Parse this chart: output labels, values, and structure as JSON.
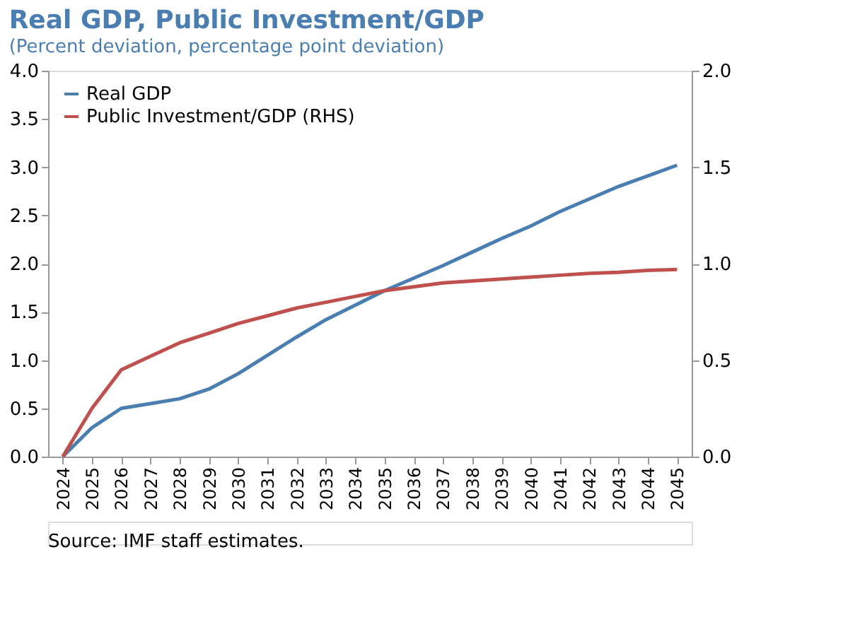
{
  "chart_data": {
    "type": "line",
    "title": "Real GDP, Public Investment/GDP",
    "subtitle": "(Percent deviation, percentage point deviation)",
    "categories": [
      "2024",
      "2025",
      "2026",
      "2027",
      "2028",
      "2029",
      "2030",
      "2031",
      "2032",
      "2033",
      "2034",
      "2035",
      "2036",
      "2037",
      "2038",
      "2039",
      "2040",
      "2041",
      "2042",
      "2043",
      "2044",
      "2045"
    ],
    "series": [
      {
        "name": "Real GDP",
        "color": "#4a7eb0",
        "values": [
          0,
          0.3,
          0.5,
          0.55,
          0.6,
          0.7,
          0.86,
          1.05,
          1.24,
          1.42,
          1.57,
          1.72,
          1.85,
          1.98,
          2.12,
          2.26,
          2.39,
          2.54,
          2.67,
          2.8,
          2.91,
          3.02
        ]
      },
      {
        "name": "Public Investment/GDP (RHS)",
        "color": "#c0504d",
        "axis": "y2",
        "values": [
          0,
          0.25,
          0.45,
          0.52,
          0.59,
          0.64,
          0.69,
          0.73,
          0.77,
          0.8,
          0.83,
          0.86,
          0.88,
          0.9,
          0.91,
          0.92,
          0.93,
          0.94,
          0.95,
          0.955,
          0.965,
          0.97
        ]
      }
    ],
    "ylim": [
      0,
      4
    ],
    "yticks": [
      {
        "value": 0,
        "label": "0.0"
      },
      0.5,
      {
        "value": 1,
        "label": "1.0"
      },
      1.5,
      {
        "value": 2,
        "label": "2.0"
      },
      2.5,
      {
        "value": 3,
        "label": "3.0"
      },
      3.5,
      {
        "value": 4,
        "label": "4.0"
      }
    ],
    "y2lim": [
      0,
      2
    ],
    "y2ticks": [
      {
        "value": 0,
        "label": "0.0"
      },
      0.5,
      {
        "value": 1,
        "label": "1.0"
      },
      1.5,
      {
        "value": 2,
        "label": "2.0"
      }
    ],
    "grid": false,
    "legend": "top left",
    "line_style": "solid",
    "annotations": [
      "Source: IMF staff estimates."
    ]
  }
}
